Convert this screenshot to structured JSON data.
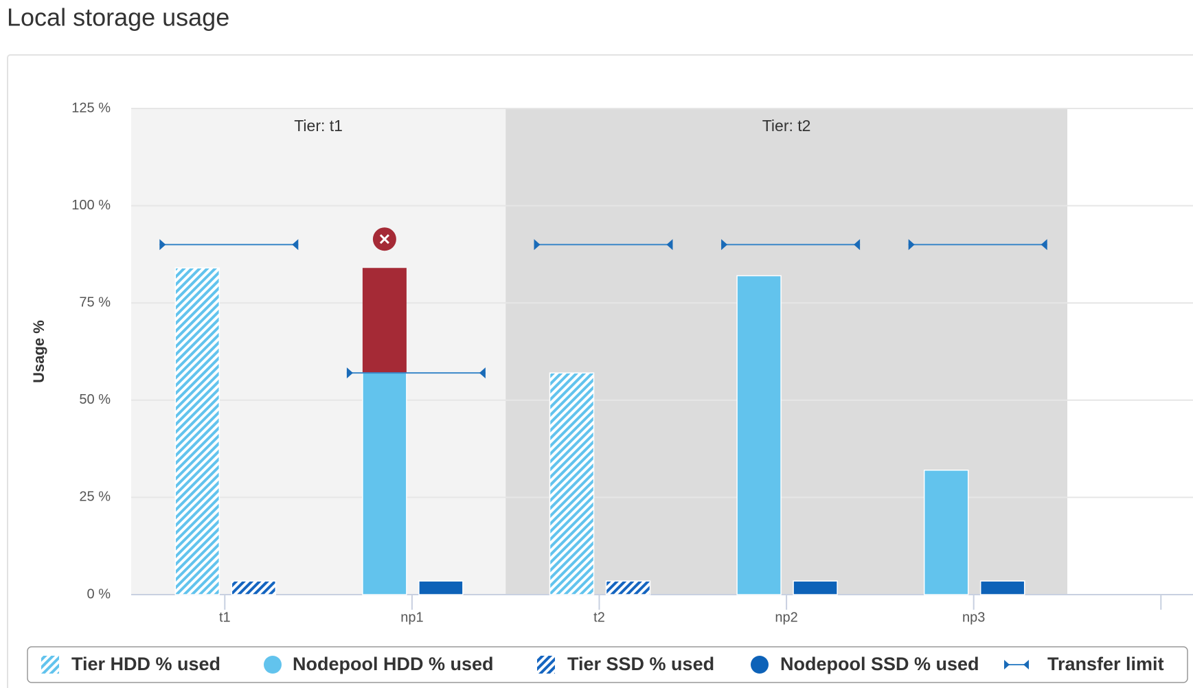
{
  "title": "Local storage usage",
  "chart_data": {
    "type": "bar",
    "y_label": "Usage %",
    "categories": [
      "t1",
      "np1",
      "t2",
      "np2",
      "np3",
      null
    ],
    "ylim": [
      0,
      125
    ],
    "yticks": [
      {
        "value": 0,
        "label": "0 %"
      },
      {
        "value": 25,
        "label": "25 %"
      },
      {
        "value": 50,
        "label": "50 %"
      },
      {
        "value": 75,
        "label": "75 %"
      },
      {
        "value": 100,
        "label": "100 %"
      },
      {
        "value": 125,
        "label": "125 %"
      }
    ],
    "grid": true,
    "bands": [
      {
        "label": "Tier: t1",
        "from": "t1",
        "to": "np1",
        "color": "#f3f3f3"
      },
      {
        "label": "Tier: t2",
        "from": "t2",
        "to": "np3",
        "color": "#dcdcdc"
      }
    ],
    "over_limit_color": "#a52a36",
    "series": [
      {
        "name": "Tier HDD % used",
        "color": "#62c3ed",
        "pattern": "hatch",
        "values": [
          84,
          null,
          57,
          null,
          null,
          null
        ]
      },
      {
        "name": "Nodepool HDD % used",
        "color": "#62c3ed",
        "values": [
          null,
          84,
          null,
          82,
          32,
          null
        ]
      },
      {
        "name": "Tier SSD % used",
        "color": "#1565c0",
        "pattern": "hatch",
        "values": [
          3.5,
          null,
          3.5,
          null,
          null,
          null
        ]
      },
      {
        "name": "Nodepool SSD % used",
        "color": "#0d62b8",
        "values": [
          null,
          3.5,
          null,
          3.5,
          3.5,
          null
        ]
      },
      {
        "name": "Transfer limit",
        "color": "#3a86c8",
        "type": "limit",
        "values": [
          90,
          57,
          90,
          90,
          90,
          null
        ]
      }
    ]
  }
}
